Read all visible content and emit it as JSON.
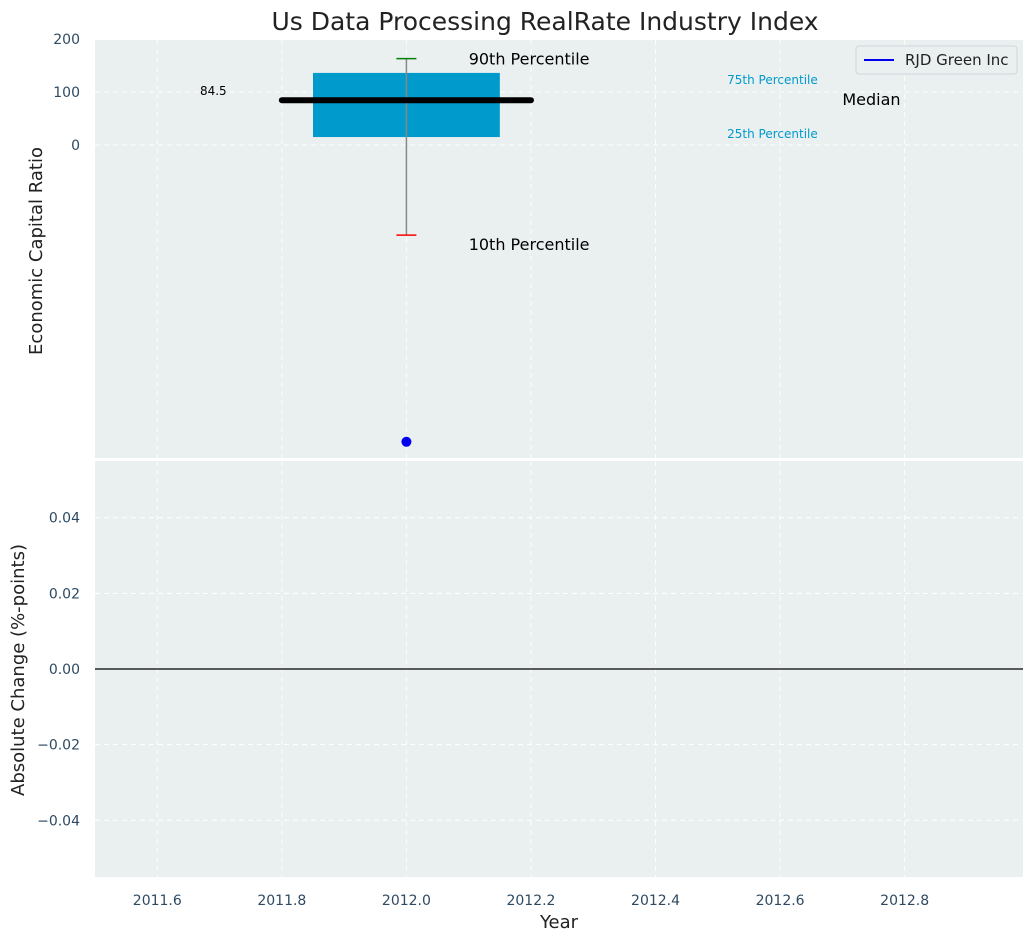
{
  "chart_data": [
    {
      "type": "box",
      "title": "Us Data Processing RealRate Industry Index",
      "ylabel": "Economic Capital Ratio",
      "xlim": [
        2011.5,
        2012.99
      ],
      "ylim": [
        -600,
        200
      ],
      "yticks": [
        0,
        100,
        200
      ],
      "xticks": [
        "2011.6",
        "2011.8",
        "2012.0",
        "2012.2",
        "2012.4",
        "2012.6",
        "2012.8"
      ],
      "grid": true,
      "legend": {
        "position": "top-right",
        "entries": [
          "RJD Green Inc"
        ]
      },
      "box": {
        "x": 2012.0,
        "p10": -170,
        "p25": 15,
        "median": 84.5,
        "p75": 136,
        "p90": 163
      },
      "median_label": "84.5",
      "series": [
        {
          "name": "RJD Green Inc",
          "color": "#0000ee",
          "x": [
            2012.0
          ],
          "y": [
            -560
          ]
        }
      ],
      "annotations": {
        "p90": "90th Percentile",
        "p10": "10th Percentile",
        "p75": "75th Percentile",
        "p25": "25th Percentile",
        "median": "Median"
      },
      "colors": {
        "box": "#009acd",
        "median_line": "#000000",
        "whisker": "#888888",
        "p90_cap": "#008000",
        "p10_cap": "#ff0000",
        "small_annotation": "#009acd",
        "background": "#eaeff0"
      }
    },
    {
      "type": "line",
      "ylabel": "Absolute Change (%-points)",
      "xlabel": "Year",
      "xlim": [
        2011.5,
        2012.99
      ],
      "ylim": [
        -0.055,
        0.055
      ],
      "yticks": [
        "−0.04",
        "−0.02",
        "0.00",
        "0.02",
        "0.04"
      ],
      "xticks": [
        "2011.6",
        "2011.8",
        "2012.0",
        "2012.2",
        "2012.4",
        "2012.6",
        "2012.8"
      ],
      "grid": true,
      "zero_line": true,
      "series": []
    }
  ]
}
